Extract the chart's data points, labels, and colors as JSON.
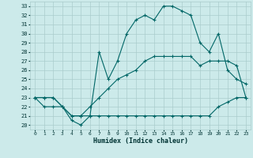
{
  "xlabel": "Humidex (Indice chaleur)",
  "background_color": "#cceaea",
  "grid_color": "#aacccc",
  "line_color": "#006666",
  "xlim": [
    -0.5,
    23.5
  ],
  "ylim": [
    19.5,
    33.5
  ],
  "x_ticks": [
    0,
    1,
    2,
    3,
    4,
    5,
    6,
    7,
    8,
    9,
    10,
    11,
    12,
    13,
    14,
    15,
    16,
    17,
    18,
    19,
    20,
    21,
    22,
    23
  ],
  "y_ticks": [
    20,
    21,
    22,
    23,
    24,
    25,
    26,
    27,
    28,
    29,
    30,
    31,
    32,
    33
  ],
  "curve1_x": [
    0,
    1,
    2,
    3,
    4,
    5,
    6,
    7,
    8,
    9,
    10,
    11,
    12,
    13,
    14,
    15,
    16,
    17,
    18,
    19,
    20,
    21,
    22,
    23
  ],
  "curve1_y": [
    23,
    22,
    22,
    22,
    20.5,
    20,
    21,
    28,
    25,
    27,
    30,
    31.5,
    32,
    31.5,
    33,
    33,
    32.5,
    32,
    29,
    28,
    30,
    26,
    25,
    24.5
  ],
  "curve2_x": [
    0,
    1,
    2,
    3,
    4,
    5,
    6,
    7,
    8,
    9,
    10,
    11,
    12,
    13,
    14,
    15,
    16,
    17,
    18,
    19,
    20,
    21,
    22,
    23
  ],
  "curve2_y": [
    23,
    23,
    23,
    22,
    21,
    21,
    22,
    23,
    24,
    25,
    25.5,
    26,
    27,
    27.5,
    27.5,
    27.5,
    27.5,
    27.5,
    26.5,
    27,
    27,
    27,
    26.5,
    23
  ],
  "curve3_x": [
    0,
    1,
    2,
    3,
    4,
    5,
    6,
    7,
    8,
    9,
    10,
    11,
    12,
    13,
    14,
    15,
    16,
    17,
    18,
    19,
    20,
    21,
    22,
    23
  ],
  "curve3_y": [
    23,
    23,
    23,
    22,
    21,
    21,
    21,
    21,
    21,
    21,
    21,
    21,
    21,
    21,
    21,
    21,
    21,
    21,
    21,
    21,
    22,
    22.5,
    23,
    23
  ]
}
